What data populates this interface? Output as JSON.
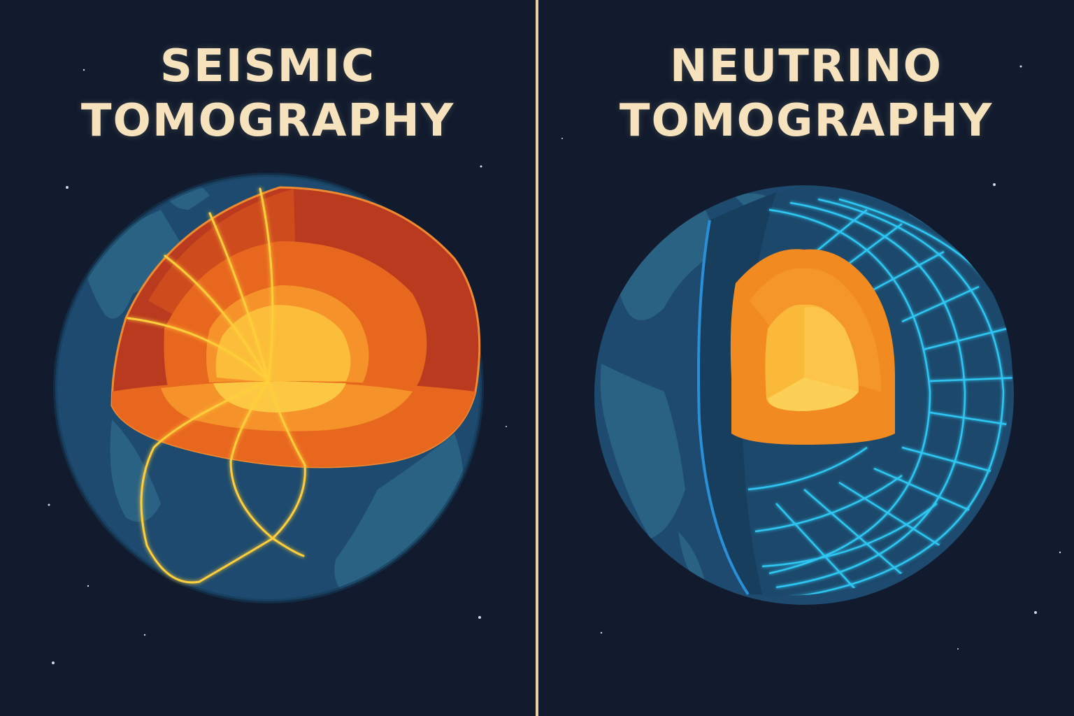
{
  "panels": [
    {
      "title_line1": "SEISMIC",
      "title_line2": "TOMOGRAPHY",
      "illustration_icon": "earth-cutaway-seismic-waves-icon"
    },
    {
      "title_line1": "NEUTRINO",
      "title_line2": "TOMOGRAPHY",
      "illustration_icon": "earth-cutaway-neutrino-grid-icon"
    }
  ],
  "colors": {
    "background": "#111b2d",
    "divider": "#e7d3a2",
    "title_text": "#f6e2bd",
    "ocean": "#1c4a6e",
    "land": "#2f6a88",
    "mantle_outer": "#b93a1e",
    "mantle_inner": "#e8641e",
    "outer_core": "#f59128",
    "inner_core": "#fbbf3c",
    "seismic_ray": "#ffce3a",
    "neutrino_grid": "#2fc6f2"
  }
}
